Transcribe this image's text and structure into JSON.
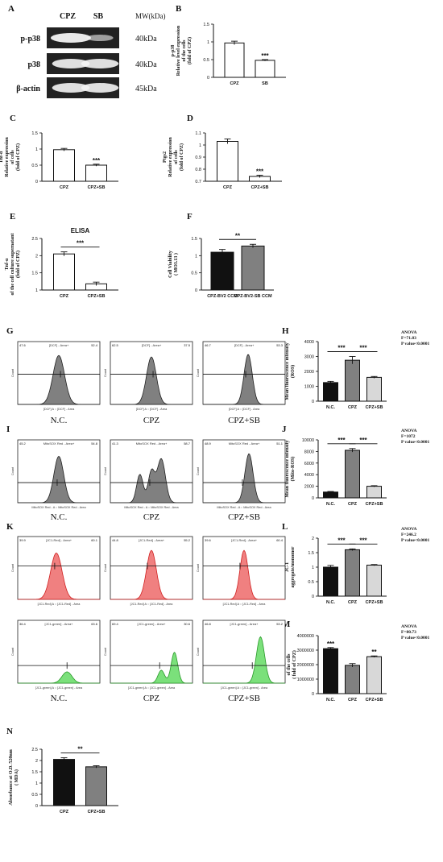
{
  "panel_letters": [
    "A",
    "B",
    "C",
    "D",
    "E",
    "F",
    "G",
    "H",
    "I",
    "J",
    "K",
    "L",
    "M",
    "N"
  ],
  "colors": {
    "red": "#e83a3a",
    "green": "#3cc33c",
    "gray": "#808080",
    "black": "#111111",
    "light": "#d8d8d8"
  },
  "panel_a": {
    "headers": [
      "CPZ",
      "SB",
      "MW(kDa)"
    ],
    "rows": [
      {
        "label": "p-p38",
        "mw": "40kDa"
      },
      {
        "label": "p38",
        "mw": "40kDa"
      },
      {
        "label": "β-actin",
        "mw": "45kDa"
      }
    ]
  },
  "flow": {
    "g": {
      "captions": [
        "N.C.",
        "CPZ",
        "CPZ+SB"
      ],
      "header_text": "[DCF] - Area+",
      "y_label": "Count",
      "x_label": "[DCF] A :: [DCF] - Area",
      "gate_values": [
        [
          "47.6",
          "52.4"
        ],
        [
          "62.5",
          "37.5"
        ],
        [
          "46.7",
          "53.3"
        ]
      ]
    },
    "i": {
      "captions": [
        "N.C.",
        "CPZ",
        "CPZ+SB"
      ],
      "header_text": "MitoSOX Red - Area+",
      "y_label": "Count",
      "x_label": "MitoSOX Red - A :: MitoSOX Red - Area",
      "gate_values": [
        [
          "45.2",
          "54.8"
        ],
        [
          "41.3",
          "58.7"
        ],
        [
          "48.9",
          "51.1"
        ]
      ]
    },
    "k": {
      "captions": [
        "N.C.",
        "CPZ",
        "CPZ+SB"
      ],
      "header_red": "[JC1-Red] - Area+",
      "header_green": "[JC1-green] - Area+",
      "y_label": "Count",
      "x_label_red": "[JC1-Red] A :: [JC1-Red] - Area",
      "x_label_green": "[JC1-green] A :: [JC1-green] - Area",
      "gate_values_red": [
        [
          "39.9",
          "60.1"
        ],
        [
          "44.8",
          "55.2"
        ],
        [
          "39.6",
          "60.4"
        ]
      ],
      "gate_values_green": [
        [
          "36.4",
          "63.6"
        ],
        [
          "69.4",
          "30.6"
        ],
        [
          "46.8",
          "53.2"
        ]
      ]
    }
  },
  "chart_data": [
    {
      "id": "B",
      "type": "bar",
      "categories": [
        "CPZ",
        "SB"
      ],
      "values": [
        0.97,
        0.48
      ],
      "errors": [
        0.05,
        0.02
      ],
      "ylim": [
        0,
        1.5
      ],
      "yticks": [
        0.0,
        0.5,
        1.0,
        1.5
      ],
      "ylabel": [
        "p-p38",
        "Relative level expression",
        "of the cells",
        "(fold of CPZ)"
      ],
      "significance": [
        {
          "bar": 1,
          "text": "***"
        }
      ],
      "fills": [
        "#ffffff",
        "#ffffff"
      ]
    },
    {
      "id": "C",
      "type": "bar",
      "categories": [
        "CPZ",
        "CPZ+SB"
      ],
      "values": [
        0.98,
        0.5
      ],
      "errors": [
        0.04,
        0.03
      ],
      "ylim": [
        0,
        1.5
      ],
      "yticks": [
        0.0,
        0.5,
        1.0,
        1.5
      ],
      "ylabel": [
        "Tnf-α",
        "Relative expression",
        "of cells",
        "(fold of CPZ)"
      ],
      "significance": [
        {
          "bar": 1,
          "text": "***"
        }
      ],
      "fills": [
        "#ffffff",
        "#ffffff"
      ]
    },
    {
      "id": "D",
      "type": "bar",
      "categories": [
        "CPZ",
        "CPZ+SB"
      ],
      "values": [
        1.03,
        0.74
      ],
      "errors": [
        0.02,
        0.01
      ],
      "ylim": [
        0.7,
        1.1
      ],
      "yticks": [
        0.7,
        0.8,
        0.9,
        1.0,
        1.1
      ],
      "ylabel": [
        "Ptgs2",
        "Relative expression",
        "of cells",
        "(fold of CPZ)"
      ],
      "significance": [
        {
          "bar": 1,
          "text": "***"
        }
      ],
      "fills": [
        "#ffffff",
        "#ffffff"
      ]
    },
    {
      "id": "E",
      "type": "bar",
      "title": "ELISA",
      "categories": [
        "CPZ",
        "CPZ+SB"
      ],
      "values": [
        2.05,
        1.18
      ],
      "errors": [
        0.06,
        0.05
      ],
      "ylim": [
        1.0,
        2.5
      ],
      "yticks": [
        1.0,
        1.5,
        2.0,
        2.5
      ],
      "ylabel": [
        "Tnf-α",
        "of the cell culture supernatant",
        "(fold of CPZ)"
      ],
      "significance": [
        {
          "bracket": [
            0,
            1
          ],
          "text": "***"
        }
      ],
      "fills": [
        "#ffffff",
        "#ffffff"
      ]
    },
    {
      "id": "F",
      "type": "bar",
      "categories": [
        "CPZ-BV2 CCM",
        "CPZ-BV2-SB CCM"
      ],
      "values": [
        1.1,
        1.28
      ],
      "errors": [
        0.08,
        0.05
      ],
      "ylim": [
        0,
        1.5
      ],
      "yticks": [
        0.0,
        0.5,
        1.0,
        1.5
      ],
      "ylabel": [
        "Cell Viability",
        "( MO3.13 )"
      ],
      "significance": [
        {
          "bracket": [
            0,
            1
          ],
          "text": "**"
        }
      ],
      "fills": [
        "#111111",
        "#808080"
      ]
    },
    {
      "id": "H",
      "type": "bar",
      "categories": [
        "N.C.",
        "CPZ",
        "CPZ+SB"
      ],
      "values": [
        1250,
        2750,
        1600
      ],
      "errors": [
        80,
        250,
        60
      ],
      "ylim": [
        0,
        4000
      ],
      "yticks": [
        0,
        1000,
        2000,
        3000,
        4000
      ],
      "ylabel": [
        "Mean fluorescence intensity",
        "(ROS)"
      ],
      "significance": [
        {
          "bracket": [
            0,
            1
          ],
          "text": "***"
        },
        {
          "bracket": [
            1,
            2
          ],
          "text": "***"
        }
      ],
      "stats": [
        "ANOVA",
        "F=71.83",
        "P value<0.0001"
      ],
      "fills": [
        "#111111",
        "#808080",
        "#d8d8d8"
      ]
    },
    {
      "id": "J",
      "type": "bar",
      "categories": [
        "N.C.",
        "CPZ",
        "CPZ+SB"
      ],
      "values": [
        1000,
        8200,
        2000
      ],
      "errors": [
        100,
        300,
        100
      ],
      "ylim": [
        0,
        10000
      ],
      "yticks": [
        0,
        2000,
        4000,
        6000,
        8000,
        10000
      ],
      "ylabel": [
        "Mean fluorescence intensity",
        "(Mito-ROS)"
      ],
      "significance": [
        {
          "bracket": [
            0,
            1
          ],
          "text": "***"
        },
        {
          "bracket": [
            1,
            2
          ],
          "text": "***"
        }
      ],
      "stats": [
        "ANOVA",
        "F=1072",
        "P value<0.0001"
      ],
      "fills": [
        "#111111",
        "#808080",
        "#d8d8d8"
      ]
    },
    {
      "id": "L",
      "type": "bar",
      "categories": [
        "N.C.",
        "CPZ",
        "CPZ+SB"
      ],
      "values": [
        1.0,
        1.6,
        1.07
      ],
      "errors": [
        0.06,
        0.03,
        0.02
      ],
      "ylim": [
        0,
        2.0
      ],
      "yticks": [
        0.0,
        0.5,
        1.0,
        1.5,
        2.0
      ],
      "ylabel": [
        "JC-1",
        "aggregate/monomer"
      ],
      "significance": [
        {
          "bracket": [
            0,
            1
          ],
          "text": "***"
        },
        {
          "bracket": [
            1,
            2
          ],
          "text": "***"
        }
      ],
      "stats": [
        "ANOVA",
        "F=246.2",
        "P value<0.0001"
      ],
      "fills": [
        "#111111",
        "#808080",
        "#d8d8d8"
      ]
    },
    {
      "id": "M",
      "type": "bar",
      "categories": [
        "N.C.",
        "CPZ",
        "CPZ+SB"
      ],
      "values": [
        3100000,
        1950000,
        2550000
      ],
      "errors": [
        80000,
        120000,
        50000
      ],
      "ylim": [
        0,
        4000000
      ],
      "yticks": [
        0,
        1000000,
        2000000,
        3000000,
        4000000
      ],
      "ylabel": [
        "ATP",
        "Level expression",
        "of the cells",
        "( fold of CPZ)"
      ],
      "significance": [
        {
          "bar": 0,
          "text": "***"
        },
        {
          "bar": 2,
          "text": "**"
        }
      ],
      "stats": [
        "ANOVA",
        "F=80.73",
        "P value<0.0001"
      ],
      "fills": [
        "#111111",
        "#808080",
        "#d8d8d8"
      ]
    },
    {
      "id": "N",
      "type": "bar",
      "categories": [
        "CPZ",
        "CPZ+SB"
      ],
      "values": [
        2.05,
        1.72
      ],
      "errors": [
        0.07,
        0.05
      ],
      "ylim": [
        0,
        2.5
      ],
      "yticks": [
        0.0,
        0.5,
        1.0,
        1.5,
        2.0,
        2.5
      ],
      "ylabel": [
        "Absorbance at O.D. 520nm",
        "( MDA)"
      ],
      "significance": [
        {
          "bracket": [
            0,
            1
          ],
          "text": "**"
        }
      ],
      "fills": [
        "#111111",
        "#808080"
      ]
    }
  ]
}
